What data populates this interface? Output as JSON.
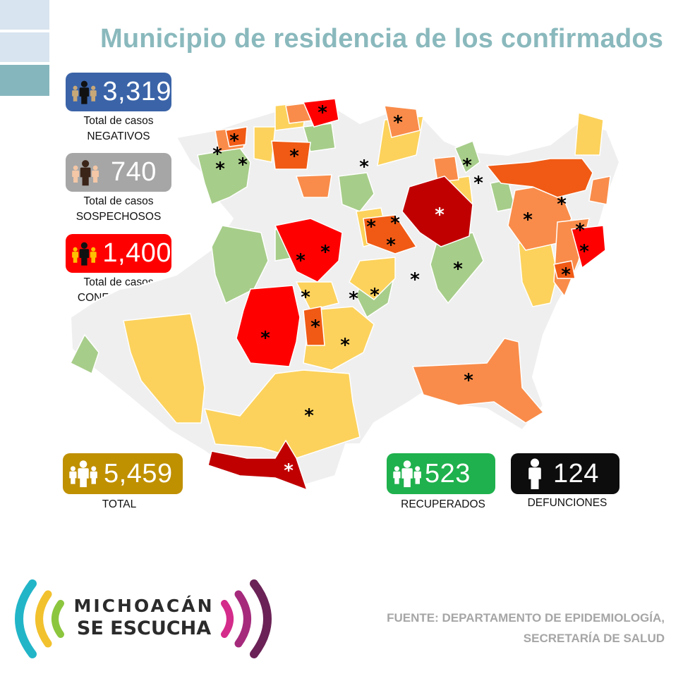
{
  "header": {
    "title": "Municipio de residencia de los confirmados"
  },
  "stats": {
    "negativos": {
      "value": "3,319",
      "label1": "Total de casos",
      "label2": "NEGATIVOS",
      "color": "#3b64a8"
    },
    "sospechosos": {
      "value": "740",
      "label1": "Total de casos",
      "label2": "SOSPECHOSOS",
      "color": "#a6a6a6"
    },
    "confirmados": {
      "value": "1,400",
      "label1": "Total de casos",
      "label2": "CONFIRMADOS",
      "color": "#ff0000"
    },
    "total": {
      "value": "5,459",
      "label": "TOTAL",
      "color": "#bf9000"
    },
    "recuperados": {
      "value": "523",
      "label": "RECUPERADOS",
      "color": "#1fb14d"
    },
    "defunciones": {
      "value": "124",
      "label": "DEFUNCIONES",
      "color": "#0d0d0d"
    }
  },
  "map": {
    "region": "Michoacán",
    "legend_colors": {
      "highest": "#c00000",
      "very_high": "#ff0000",
      "high": "#f05a14",
      "medium": "#f98c4a",
      "low": "#fcd25c",
      "very_low": "#a7cd8a",
      "none": "#efefef"
    },
    "marker": "*"
  },
  "logo": {
    "line1": "MICHOACÁN",
    "line2": "SE ESCUCHA"
  },
  "source": {
    "line1": "FUENTE: DEPARTAMENTO DE EPIDEMIOLOGÍA,",
    "line2": "SECRETARÍA DE SALUD"
  }
}
